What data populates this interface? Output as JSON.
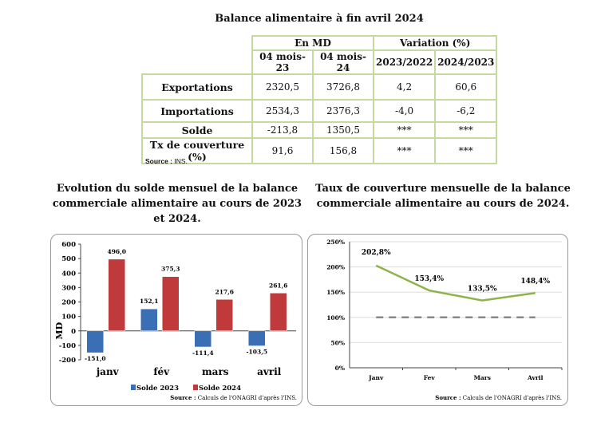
{
  "table": {
    "title": "Balance alimentaire à fin avril 2024",
    "group_headers": [
      "En MD",
      "Variation (%)"
    ],
    "column_headers": [
      "04 mois-23",
      "04 mois-24",
      "2023/2022",
      "2024/2023"
    ],
    "rows": [
      {
        "label": "Exportations",
        "values": [
          "2320,5",
          "3726,8",
          "4,2",
          "60,6"
        ]
      },
      {
        "label": "Importations",
        "values": [
          "2534,3",
          "2376,3",
          "-4,0",
          "-6,2"
        ]
      },
      {
        "label": "Solde",
        "values": [
          "-213,8",
          "1350,5",
          "***",
          "***"
        ]
      },
      {
        "label": "Tx de couverture (%)",
        "values": [
          "91,6",
          "156,8",
          "***",
          "***"
        ]
      }
    ],
    "source_label": "Source :",
    "source_text": " INS."
  },
  "chart_data": [
    {
      "type": "bar",
      "title": "Evolution du solde mensuel de la balance commerciale alimentaire au cours de 2023 et 2024.",
      "categories": [
        "janv",
        "fév",
        "mars",
        "avril"
      ],
      "ylabel": "MD",
      "ylim": [
        -200,
        600
      ],
      "yticks": [
        600,
        500,
        400,
        300,
        200,
        100,
        0,
        -100,
        -200
      ],
      "grid": false,
      "legend": "bottom",
      "series": [
        {
          "name": "Solde 2023",
          "color": "#3a6fb5",
          "values": [
            -151.0,
            152.1,
            -111.4,
            -103.5
          ],
          "labels": [
            "-151,0",
            "152,1",
            "-111,4",
            "-103,5"
          ]
        },
        {
          "name": "Solde 2024",
          "color": "#c0393b",
          "values": [
            496.0,
            375.3,
            217.6,
            261.6
          ],
          "labels": [
            "496,0",
            "375,3",
            "217,6",
            "261,6"
          ]
        }
      ],
      "source_label": "Source :",
      "source_text": " Calculs de l'ONAGRI d'après l'INS."
    },
    {
      "type": "line",
      "title": "Taux de couverture mensuelle de la balance commerciale alimentaire au cours de 2024.",
      "categories": [
        "Janv",
        "Fev",
        "Mars",
        "Avril"
      ],
      "ylim": [
        0,
        250
      ],
      "yticks": [
        "0%",
        "50%",
        "100%",
        "150%",
        "200%",
        "250%"
      ],
      "grid": true,
      "series": [
        {
          "color": "#8db44a",
          "values": [
            202.8,
            153.4,
            133.5,
            148.4
          ],
          "labels": [
            "202,8%",
            "153,4%",
            "133,5%",
            "148,4%"
          ]
        }
      ],
      "reference_line": {
        "value": 100,
        "color": "#888888",
        "style": "dashed"
      },
      "source_label": "Source :",
      "source_text": " Calculs de l'ONAGRI d'après l'INS."
    }
  ]
}
